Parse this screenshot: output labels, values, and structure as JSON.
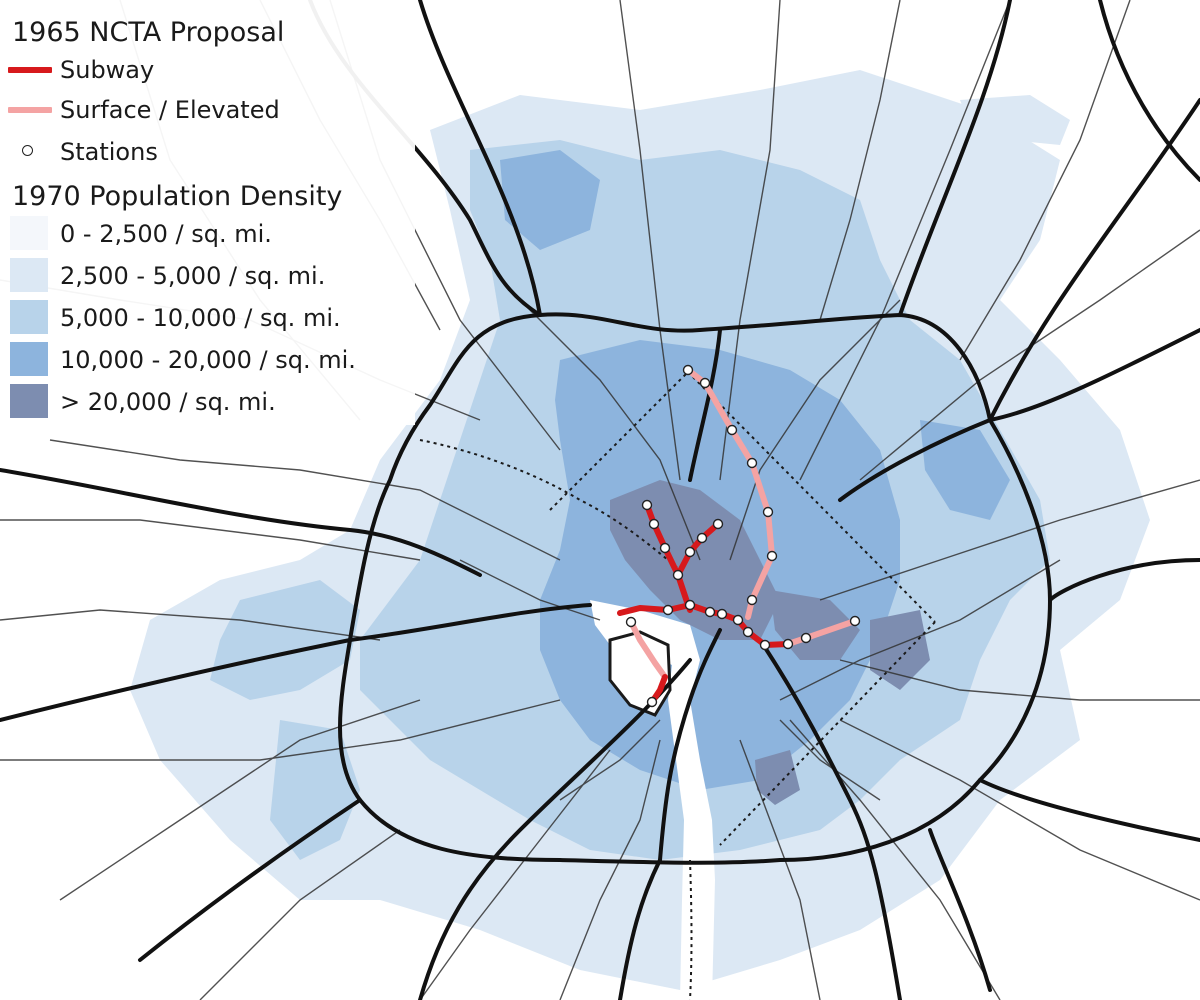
{
  "map": {
    "colors": {
      "background": "#ffffff",
      "density_0": "#f4f7fb",
      "density_1": "#dce8f4",
      "density_2": "#b8d3ea",
      "density_3": "#8db4dd",
      "density_4": "#7d8db0",
      "roads": "#1a1a1a",
      "subway": "#d7191c",
      "surface": "#f4a3a3",
      "station_fill": "#ffffff"
    }
  },
  "legend": {
    "proposal_title": "1965 NCTA Proposal",
    "subway_label": "Subway",
    "surface_label": "Surface / Elevated",
    "stations_label": "Stations",
    "density_title": "1970 Population Density",
    "density_classes": [
      {
        "label": "0 - 2,500 / sq. mi.",
        "color": "#f4f7fb"
      },
      {
        "label": "2,500 - 5,000 / sq. mi.",
        "color": "#dce8f4"
      },
      {
        "label": "5,000 - 10,000 / sq. mi.",
        "color": "#b8d3ea"
      },
      {
        "label": "10,000 - 20,000 / sq. mi.",
        "color": "#8db4dd"
      },
      {
        "label": "> 20,000 / sq. mi.",
        "color": "#7d8db0"
      }
    ]
  }
}
